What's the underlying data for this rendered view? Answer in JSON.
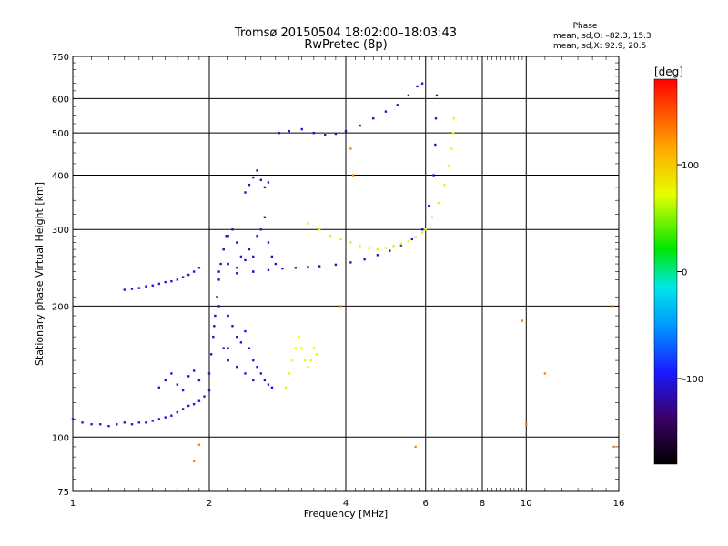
{
  "header": {
    "title_line1": "Tromsø 20150504 18:02:00–18:03:43",
    "title_line2": "RwPretec (8p)"
  },
  "phase_box": {
    "title": "Phase",
    "line_o": "mean, sd,O: –82.3, 15.3",
    "line_x": "mean, sd,X:  92.9, 20.5"
  },
  "colorbar": {
    "unit": "[deg]",
    "min": -180,
    "max": 180,
    "tick_values": [
      100,
      0,
      -100
    ],
    "tick_labels": [
      "100",
      "0",
      "–100"
    ]
  },
  "chart_data": {
    "type": "scatter",
    "title": "Tromsø 20150504 18:02:00–18:03:43",
    "subtitle": "RwPretec (8p)",
    "xlabel": "Frequency [MHz]",
    "ylabel": "Stationary phase Virtual Height [km]",
    "xscale": "log",
    "yscale": "log",
    "xlim": [
      1,
      16
    ],
    "ylim": [
      75,
      750
    ],
    "x_ticks": [
      1,
      2,
      4,
      6,
      8,
      10,
      16
    ],
    "x_tick_labels": [
      "1",
      "2",
      "4",
      "6",
      "8",
      "10",
      "16"
    ],
    "y_ticks": [
      75,
      100,
      200,
      300,
      400,
      500,
      600,
      750
    ],
    "y_tick_labels": [
      "75",
      "100",
      "200",
      "300",
      "400",
      "500",
      "600",
      "750"
    ],
    "grid": true,
    "color_scale": "phase (deg), -180 to 180, rainbow",
    "series": [
      {
        "phase": -100,
        "points": [
          [
            1.0,
            110
          ],
          [
            1.05,
            108
          ],
          [
            1.1,
            107
          ],
          [
            1.15,
            107
          ],
          [
            1.2,
            106
          ],
          [
            1.25,
            107
          ],
          [
            1.3,
            108
          ],
          [
            1.35,
            107
          ],
          [
            1.4,
            108
          ],
          [
            1.45,
            108
          ],
          [
            1.5,
            109
          ],
          [
            1.55,
            110
          ],
          [
            1.6,
            111
          ],
          [
            1.65,
            112
          ],
          [
            1.7,
            114
          ],
          [
            1.75,
            116
          ],
          [
            1.8,
            118
          ],
          [
            1.85,
            119
          ],
          [
            1.9,
            121
          ],
          [
            1.95,
            124
          ],
          [
            2.0,
            128
          ]
        ]
      },
      {
        "phase": -105,
        "points": [
          [
            1.55,
            130
          ],
          [
            1.6,
            135
          ],
          [
            1.65,
            140
          ],
          [
            1.7,
            132
          ],
          [
            1.75,
            128
          ],
          [
            1.8,
            138
          ],
          [
            1.85,
            142
          ],
          [
            1.9,
            135
          ]
        ]
      },
      {
        "phase": -110,
        "points": [
          [
            2.0,
            140
          ],
          [
            2.02,
            155
          ],
          [
            2.04,
            170
          ],
          [
            2.06,
            190
          ],
          [
            2.08,
            210
          ],
          [
            2.1,
            230
          ],
          [
            2.12,
            250
          ],
          [
            2.15,
            270
          ],
          [
            2.18,
            290
          ],
          [
            2.05,
            180
          ],
          [
            2.1,
            200
          ],
          [
            2.15,
            160
          ],
          [
            2.2,
            150
          ]
        ]
      },
      {
        "phase": -105,
        "points": [
          [
            2.2,
            190
          ],
          [
            2.25,
            180
          ],
          [
            2.3,
            170
          ],
          [
            2.35,
            165
          ],
          [
            2.4,
            175
          ],
          [
            2.45,
            160
          ],
          [
            2.5,
            150
          ],
          [
            2.55,
            145
          ],
          [
            2.6,
            140
          ],
          [
            2.65,
            135
          ],
          [
            2.7,
            132
          ],
          [
            2.75,
            130
          ],
          [
            2.2,
            160
          ],
          [
            2.3,
            145
          ],
          [
            2.4,
            140
          ],
          [
            2.5,
            135
          ]
        ]
      },
      {
        "phase": -100,
        "points": [
          [
            1.3,
            218
          ],
          [
            1.35,
            219
          ],
          [
            1.4,
            220
          ],
          [
            1.45,
            222
          ],
          [
            1.5,
            223
          ],
          [
            1.55,
            225
          ],
          [
            1.6,
            227
          ],
          [
            1.65,
            228
          ],
          [
            1.7,
            230
          ],
          [
            1.75,
            233
          ],
          [
            1.8,
            236
          ],
          [
            1.85,
            240
          ],
          [
            1.9,
            245
          ]
        ]
      },
      {
        "phase": -105,
        "points": [
          [
            2.15,
            270
          ],
          [
            2.2,
            290
          ],
          [
            2.25,
            300
          ],
          [
            2.3,
            280
          ],
          [
            2.35,
            260
          ],
          [
            2.4,
            255
          ],
          [
            2.45,
            270
          ],
          [
            2.5,
            260
          ],
          [
            2.55,
            290
          ],
          [
            2.6,
            300
          ],
          [
            2.65,
            320
          ],
          [
            2.7,
            280
          ],
          [
            2.75,
            260
          ],
          [
            2.8,
            250
          ],
          [
            2.2,
            250
          ],
          [
            2.3,
            245
          ],
          [
            2.5,
            240
          ]
        ]
      },
      {
        "phase": -110,
        "points": [
          [
            2.1,
            240
          ],
          [
            2.3,
            238
          ],
          [
            2.5,
            240
          ],
          [
            2.7,
            242
          ],
          [
            2.9,
            244
          ],
          [
            3.1,
            245
          ],
          [
            3.3,
            246
          ],
          [
            3.5,
            247
          ],
          [
            3.8,
            249
          ],
          [
            4.1,
            252
          ],
          [
            4.4,
            256
          ],
          [
            4.7,
            262
          ],
          [
            5.0,
            268
          ],
          [
            5.3,
            276
          ],
          [
            5.6,
            285
          ],
          [
            5.9,
            300
          ],
          [
            6.1,
            340
          ],
          [
            6.25,
            400
          ],
          [
            6.3,
            470
          ],
          [
            6.32,
            540
          ],
          [
            6.35,
            610
          ]
        ]
      },
      {
        "phase": -110,
        "points": [
          [
            2.4,
            365
          ],
          [
            2.45,
            380
          ],
          [
            2.5,
            395
          ],
          [
            2.55,
            410
          ],
          [
            2.6,
            390
          ],
          [
            2.65,
            375
          ],
          [
            2.7,
            385
          ]
        ]
      },
      {
        "phase": -110,
        "points": [
          [
            2.85,
            500
          ],
          [
            3.0,
            505
          ],
          [
            3.2,
            510
          ],
          [
            3.4,
            500
          ],
          [
            3.6,
            495
          ],
          [
            3.8,
            498
          ],
          [
            4.0,
            505
          ],
          [
            4.3,
            520
          ],
          [
            4.6,
            540
          ],
          [
            4.9,
            560
          ],
          [
            5.2,
            580
          ],
          [
            5.5,
            610
          ],
          [
            5.75,
            640
          ],
          [
            5.9,
            650
          ]
        ]
      },
      {
        "phase": 80,
        "points": [
          [
            3.3,
            310
          ],
          [
            3.5,
            300
          ],
          [
            3.7,
            290
          ],
          [
            3.9,
            285
          ],
          [
            4.1,
            280
          ],
          [
            4.3,
            275
          ],
          [
            4.5,
            272
          ],
          [
            4.7,
            270
          ],
          [
            4.9,
            272
          ],
          [
            5.1,
            275
          ],
          [
            5.3,
            278
          ],
          [
            5.5,
            282
          ],
          [
            5.7,
            288
          ],
          [
            5.9,
            295
          ]
        ]
      },
      {
        "phase": 70,
        "points": [
          [
            6.0,
            300
          ],
          [
            6.2,
            320
          ],
          [
            6.4,
            345
          ],
          [
            6.6,
            380
          ],
          [
            6.75,
            420
          ],
          [
            6.85,
            460
          ],
          [
            6.9,
            500
          ],
          [
            6.92,
            540
          ]
        ]
      },
      {
        "phase": 75,
        "points": [
          [
            2.95,
            130
          ],
          [
            3.0,
            140
          ],
          [
            3.05,
            150
          ],
          [
            3.1,
            160
          ],
          [
            3.15,
            170
          ],
          [
            3.2,
            160
          ],
          [
            3.25,
            150
          ],
          [
            3.3,
            145
          ],
          [
            3.35,
            150
          ],
          [
            3.4,
            160
          ],
          [
            3.45,
            155
          ]
        ]
      },
      {
        "phase": 130,
        "points": [
          [
            1.85,
            88
          ],
          [
            1.9,
            96
          ],
          [
            3.9,
            200
          ],
          [
            4.1,
            460
          ],
          [
            4.15,
            400
          ],
          [
            5.7,
            95
          ],
          [
            10.0,
            107
          ],
          [
            9.8,
            185
          ],
          [
            11.0,
            140
          ],
          [
            15.5,
            200
          ],
          [
            15.6,
            95
          ]
        ]
      }
    ]
  }
}
